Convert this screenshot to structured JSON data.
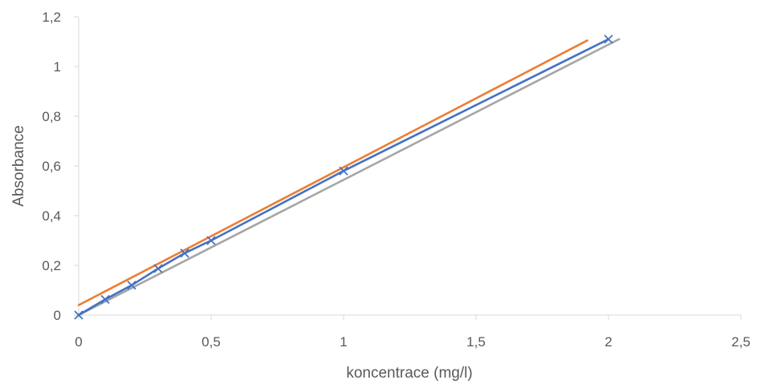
{
  "chart_data": {
    "type": "scatter",
    "title": "",
    "xlabel": "koncentrace (mg/l)",
    "ylabel": "Absorbance",
    "xlim": [
      0,
      2.5
    ],
    "ylim": [
      0,
      1.2
    ],
    "x_ticks": [
      0,
      0.5,
      1,
      1.5,
      2,
      2.5
    ],
    "x_tick_labels": [
      "0",
      "0,5",
      "1",
      "1,5",
      "2",
      "2,5"
    ],
    "y_ticks": [
      0,
      0.2,
      0.4,
      0.6,
      0.8,
      1,
      1.2
    ],
    "y_tick_labels": [
      "0",
      "0,2",
      "0,4",
      "0,6",
      "0,8",
      "1",
      "1,2"
    ],
    "grid": false,
    "legend": "none",
    "series": [
      {
        "kind": "line",
        "color": "#ED7D31",
        "x": [
          0,
          1.92
        ],
        "y": [
          0.04,
          1.105
        ]
      },
      {
        "kind": "line",
        "color": "#A5A5A5",
        "x": [
          0,
          2.04
        ],
        "y": [
          0.0,
          1.11
        ]
      },
      {
        "kind": "line+markers",
        "marker": "x",
        "color": "#4472C4",
        "x": [
          0,
          0.1,
          0.2,
          0.3,
          0.4,
          0.5,
          1,
          2
        ],
        "y": [
          0.0,
          0.063,
          0.12,
          0.187,
          0.249,
          0.3,
          0.58,
          1.11
        ]
      }
    ]
  }
}
